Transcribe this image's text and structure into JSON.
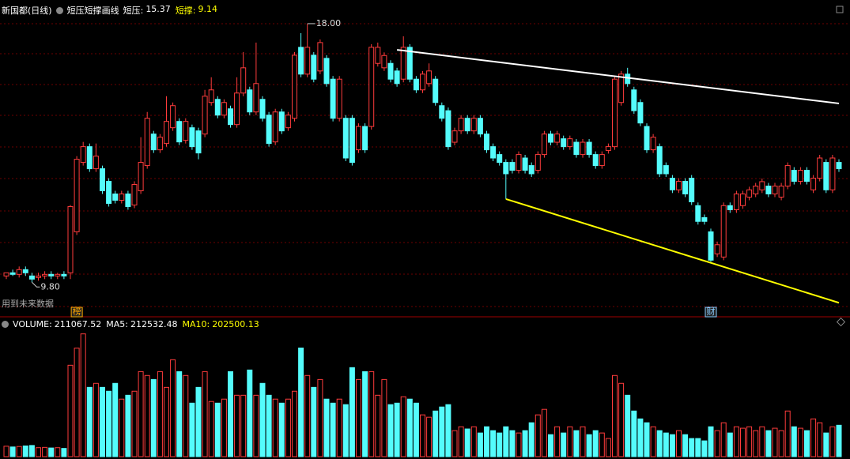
{
  "chart_data": {
    "type": "candlestick",
    "title": "新国都(日线)",
    "indicator": {
      "name": "短压短撑画线",
      "items": [
        {
          "label": "短压:",
          "value": 15.37,
          "color": "#ffffff"
        },
        {
          "label": "短撑:",
          "value": 9.14,
          "color": "#ffff00"
        }
      ]
    },
    "volume_legend": [
      {
        "label": "VOLUME:",
        "value": 211067.52,
        "color": "#ffffff"
      },
      {
        "label": "MA5:",
        "value": 212532.48,
        "color": "#ffffff"
      },
      {
        "label": "MA10:",
        "value": 202500.13,
        "color": "#ffff00"
      }
    ],
    "note": "用到未来数据",
    "up_color": "#ff3c3c",
    "down_color": "#54fcfc",
    "ylim": [
      8.73,
      18.75
    ],
    "volume_ylim": [
      0,
      840000
    ],
    "open": [
      10.0,
      10.1,
      10.05,
      10.2,
      10.0,
      9.95,
      10.0,
      10.05,
      10.0,
      10.05,
      10.1,
      11.4,
      13.6,
      14.1,
      13.4,
      13.4,
      13.0,
      12.6,
      12.4,
      12.6,
      12.25,
      12.7,
      13.5,
      14.5,
      14.0,
      14.2,
      14.7,
      14.9,
      14.3,
      14.7,
      14.6,
      14.5,
      15.5,
      15.6,
      15.1,
      15.3,
      14.8,
      15.8,
      15.9,
      15.2,
      15.6,
      15.1,
      14.25,
      15.2,
      14.7,
      15.0,
      17.25,
      16.4,
      17.0,
      16.5,
      16.9,
      16.24,
      15.0,
      15.0,
      15.0,
      14.0,
      14.74,
      14.74,
      16.74,
      16.6,
      16.74,
      16.5,
      16.24,
      17.25,
      16.24,
      15.9,
      16.1,
      16.24,
      15.4,
      15.24,
      14.24,
      14.6,
      15.0,
      14.6,
      15.0,
      14.5,
      14.1,
      13.85,
      13.6,
      13.6,
      13.35,
      13.74,
      13.5,
      13.35,
      13.85,
      14.5,
      14.24,
      14.35,
      14.1,
      14.24,
      13.85,
      14.24,
      13.85,
      13.5,
      13.98,
      14.1,
      15.5,
      16.4,
      15.9,
      15.5,
      14.74,
      14.0,
      14.1,
      13.5,
      13.1,
      12.73,
      13.0,
      13.1,
      12.23,
      11.85,
      11.4,
      10.7,
      10.6,
      12.23,
      12.1,
      12.23,
      12.5,
      12.6,
      12.73,
      12.85,
      12.6,
      12.5,
      12.85,
      13.35,
      13.0,
      13.35,
      12.73,
      13.1,
      13.6,
      12.73,
      13.6
    ],
    "high": [
      10.1,
      10.2,
      10.3,
      10.3,
      10.1,
      10.1,
      10.15,
      10.15,
      10.1,
      10.15,
      12.25,
      13.8,
      14.25,
      14.2,
      14.2,
      13.5,
      13.1,
      12.7,
      12.7,
      12.7,
      13.0,
      14.4,
      15.2,
      14.6,
      14.5,
      15.7,
      15.5,
      15.0,
      15.0,
      14.8,
      14.7,
      15.9,
      16.3,
      15.7,
      15.6,
      15.4,
      16.3,
      17.1,
      16.0,
      17.4,
      15.7,
      15.2,
      15.3,
      15.3,
      15.2,
      17.1,
      17.7,
      18.0,
      17.1,
      17.5,
      17.0,
      16.34,
      16.34,
      15.1,
      15.1,
      14.84,
      14.84,
      17.35,
      17.4,
      17.09,
      16.84,
      16.6,
      17.6,
      17.35,
      16.34,
      16.5,
      16.74,
      16.34,
      15.5,
      15.34,
      14.7,
      15.1,
      15.1,
      15.1,
      15.1,
      14.6,
      14.2,
      13.95,
      13.7,
      13.7,
      13.95,
      13.84,
      13.6,
      13.95,
      14.6,
      14.6,
      14.6,
      14.45,
      14.45,
      14.34,
      14.34,
      14.34,
      13.95,
      13.95,
      14.2,
      16.34,
      16.5,
      16.6,
      16.0,
      15.6,
      14.84,
      14.5,
      14.2,
      13.6,
      13.2,
      13.1,
      13.1,
      13.2,
      12.33,
      11.95,
      11.5,
      11.09,
      12.33,
      12.33,
      12.7,
      12.7,
      12.83,
      12.95,
      13.09,
      12.95,
      12.95,
      12.95,
      13.6,
      13.45,
      13.45,
      13.45,
      13.2,
      13.84,
      13.7,
      13.84,
      13.7
    ],
    "low": [
      9.9,
      10.0,
      9.95,
      10.0,
      9.8,
      9.85,
      9.9,
      9.9,
      9.9,
      9.9,
      9.9,
      11.3,
      13.5,
      13.3,
      13.3,
      12.6,
      12.2,
      12.3,
      12.3,
      12.1,
      12.15,
      12.6,
      13.4,
      13.9,
      13.9,
      14.1,
      14.6,
      14.15,
      14.2,
      14.0,
      13.7,
      14.4,
      15.4,
      15.0,
      15.0,
      14.7,
      14.7,
      15.7,
      15.1,
      15.1,
      14.9,
      14.1,
      14.15,
      14.5,
      14.6,
      14.9,
      16.3,
      16.3,
      16.14,
      16.4,
      16.0,
      14.9,
      14.9,
      13.64,
      13.5,
      13.9,
      13.9,
      14.64,
      16.64,
      16.5,
      16.14,
      16.0,
      16.14,
      16.14,
      15.8,
      15.8,
      16.0,
      15.4,
      14.9,
      14.0,
      14.14,
      14.5,
      14.5,
      14.5,
      14.4,
      13.9,
      13.64,
      13.5,
      12.44,
      13.25,
      13.25,
      13.25,
      13.14,
      13.25,
      13.75,
      14.14,
      14.14,
      14.0,
      14.0,
      13.75,
      13.75,
      13.75,
      13.4,
      13.4,
      13.88,
      14.0,
      15.4,
      16.0,
      15.14,
      14.75,
      13.9,
      13.9,
      13.14,
      13.14,
      12.63,
      12.63,
      12.5,
      12.25,
      11.63,
      11.63,
      10.45,
      10.6,
      10.5,
      12.0,
      12.0,
      12.13,
      12.4,
      12.5,
      12.63,
      12.5,
      12.5,
      12.4,
      12.75,
      12.9,
      12.9,
      12.9,
      12.63,
      13.0,
      12.63,
      12.63,
      13.3
    ],
    "close": [
      10.1,
      10.05,
      10.2,
      10.1,
      9.9,
      10.0,
      10.05,
      10.0,
      10.05,
      10.0,
      12.2,
      13.7,
      14.1,
      13.4,
      13.8,
      12.7,
      12.3,
      12.4,
      12.6,
      12.2,
      12.9,
      13.6,
      15.0,
      14.0,
      14.4,
      14.9,
      15.4,
      14.25,
      14.9,
      14.1,
      13.9,
      15.7,
      15.9,
      15.1,
      15.5,
      14.8,
      15.8,
      16.6,
      15.2,
      16.1,
      15.0,
      14.2,
      15.2,
      14.6,
      15.1,
      17.0,
      16.4,
      17.25,
      16.24,
      17.4,
      16.1,
      15.0,
      16.24,
      13.74,
      13.6,
      14.74,
      14.0,
      17.25,
      17.25,
      16.99,
      16.24,
      16.1,
      17.25,
      16.24,
      15.9,
      16.4,
      16.5,
      15.5,
      15.0,
      14.1,
      14.6,
      15.0,
      14.6,
      15.0,
      14.5,
      14.0,
      13.74,
      13.6,
      13.24,
      13.35,
      13.85,
      13.35,
      13.24,
      13.85,
      14.5,
      14.24,
      14.5,
      14.1,
      14.35,
      13.85,
      14.24,
      13.85,
      13.5,
      13.85,
      14.1,
      16.24,
      16.4,
      16.1,
      15.24,
      14.85,
      14.0,
      14.4,
      13.24,
      13.24,
      12.73,
      13.0,
      12.6,
      12.35,
      11.73,
      11.73,
      10.5,
      10.99,
      12.23,
      12.1,
      12.6,
      12.6,
      12.73,
      12.85,
      12.99,
      12.6,
      12.85,
      12.85,
      13.5,
      13.0,
      13.35,
      13.0,
      13.1,
      13.74,
      12.73,
      13.74,
      13.4
    ],
    "volume": [
      70000,
      65000,
      68000,
      72000,
      75000,
      60000,
      62000,
      58000,
      60000,
      55000,
      615000,
      730000,
      826000,
      466000,
      493000,
      466000,
      440000,
      493000,
      387000,
      413000,
      440000,
      572000,
      546000,
      519000,
      572000,
      466000,
      652000,
      572000,
      546000,
      360000,
      466000,
      572000,
      371000,
      360000,
      387000,
      572000,
      413000,
      413000,
      583000,
      413000,
      493000,
      413000,
      387000,
      360000,
      387000,
      440000,
      731000,
      546000,
      466000,
      519000,
      387000,
      360000,
      387000,
      350000,
      599000,
      519000,
      572000,
      572000,
      413000,
      519000,
      350000,
      360000,
      403000,
      387000,
      360000,
      281000,
      265000,
      307000,
      334000,
      350000,
      175000,
      201000,
      186000,
      201000,
      159000,
      201000,
      175000,
      159000,
      201000,
      175000,
      159000,
      175000,
      228000,
      281000,
      318000,
      148000,
      201000,
      159000,
      201000,
      175000,
      201000,
      148000,
      175000,
      159000,
      122000,
      546000,
      493000,
      413000,
      307000,
      254000,
      228000,
      201000,
      175000,
      159000,
      148000,
      175000,
      148000,
      122000,
      122000,
      106000,
      201000,
      175000,
      228000,
      159000,
      201000,
      191000,
      201000,
      175000,
      201000,
      175000,
      191000,
      175000,
      307000,
      201000,
      191000,
      175000,
      254000,
      228000,
      159000,
      201000,
      211067.52
    ],
    "annotations": [
      {
        "value": 18,
        "label": "18.00",
        "index": 47
      },
      {
        "value": 9.8,
        "label": "9.80",
        "index": 4
      }
    ],
    "trend_lines": [
      {
        "color": "#ffffff",
        "start": {
          "index": 61,
          "price": 17.17
        },
        "end": {
          "index": 130,
          "price": 15.47
        }
      },
      {
        "color": "#ffff00",
        "start": {
          "index": 78,
          "price": 12.44
        },
        "end": {
          "index": 130,
          "price": 9.15
        }
      }
    ],
    "markers": [
      {
        "text": "榜",
        "index": 11,
        "color": "#ffaa00"
      },
      {
        "text": "财",
        "index": 110,
        "color": "#88ccff"
      }
    ]
  }
}
